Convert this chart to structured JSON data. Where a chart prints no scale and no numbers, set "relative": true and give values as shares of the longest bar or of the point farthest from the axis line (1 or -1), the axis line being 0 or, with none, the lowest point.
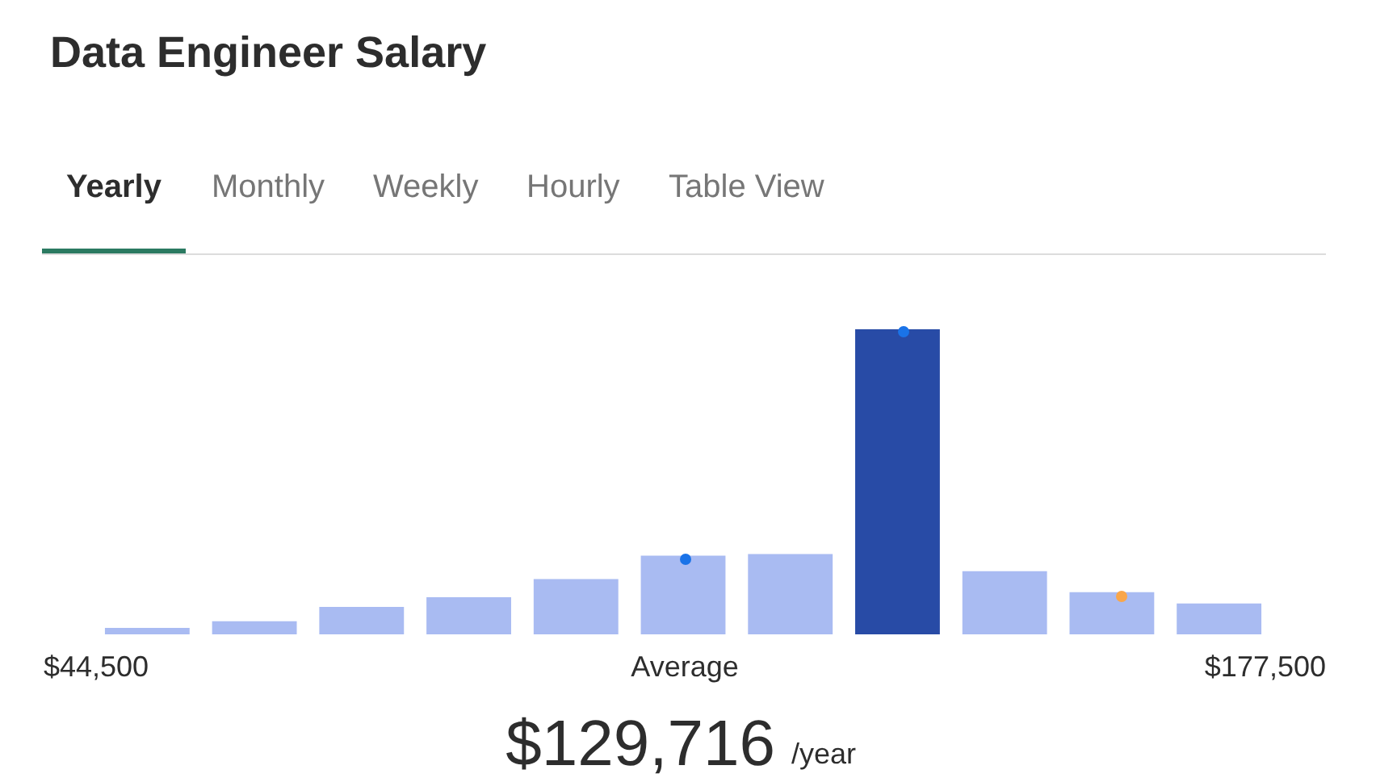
{
  "chart_data": {
    "type": "bar",
    "title": "Data Engineer Salary",
    "relative": true,
    "categories": [
      null,
      null,
      null,
      null,
      null,
      null,
      null,
      null,
      null,
      null,
      null
    ],
    "series": [
      {
        "colors": [
          "#a9bbf2",
          "#a9bbf2",
          "#a9bbf2",
          "#a9bbf2",
          "#a9bbf2",
          "#a9bbf2",
          "#a9bbf2",
          "#284ba6",
          "#a9bbf2",
          "#a9bbf2",
          "#a9bbf2"
        ],
        "values": [
          0.021,
          0.043,
          0.09,
          0.122,
          0.181,
          0.258,
          0.263,
          1,
          0.207,
          0.138,
          0.101
        ]
      }
    ],
    "annotations": [
      "Yearly",
      "Monthly",
      "Weekly",
      "Hourly",
      "Table View",
      "$44,500",
      "Average",
      "$177,500",
      "$129,716",
      "/year"
    ]
  }
}
